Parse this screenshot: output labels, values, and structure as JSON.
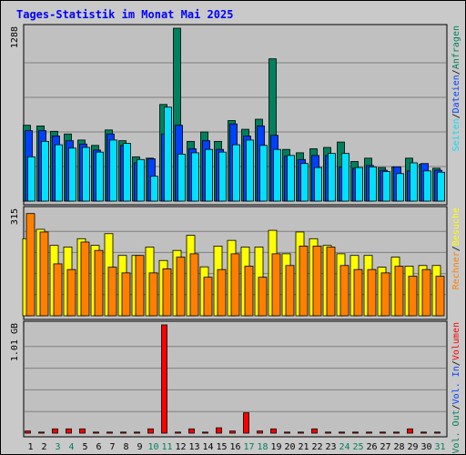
{
  "title": "Tages-Statistik im Monat Mai 2025",
  "colors": {
    "anfragen": "#00805c",
    "dateien": "#0040ff",
    "seiten": "#00e0ff",
    "besuche": "#ffff00",
    "rechner": "#ff8000",
    "volumen": "#ff0000",
    "title": "#0000ff",
    "weekend_day": "#00805c",
    "weekday": "#000000",
    "panel_bg": "#c0c0c0"
  },
  "right_legend": {
    "top": [
      {
        "text": "Anfragen",
        "color": "#00805c"
      },
      {
        "text": "Dateien",
        "color": "#0040ff"
      },
      {
        "text": "Seiten",
        "color": "#00e0ff"
      }
    ],
    "middle": [
      {
        "text": "Besuche",
        "color": "#ffff00"
      },
      {
        "text": "Rechner",
        "color": "#ff8000"
      }
    ],
    "bottom": [
      {
        "text": "Volumen",
        "color": "#ff0000"
      },
      {
        "text": "Vol. In",
        "color": "#0040ff"
      },
      {
        "text": "Vol. Out",
        "color": "#00805c"
      }
    ],
    "separator": "/"
  },
  "chart_data": [
    {
      "type": "bar",
      "panel": "top",
      "ymax_label": "1288",
      "ylim": [
        0,
        1288
      ],
      "categories": [
        "1",
        "2",
        "3",
        "4",
        "5",
        "6",
        "7",
        "8",
        "9",
        "10",
        "11",
        "12",
        "13",
        "14",
        "15",
        "16",
        "17",
        "18",
        "19",
        "20",
        "21",
        "22",
        "23",
        "24",
        "25",
        "26",
        "27",
        "28",
        "29",
        "30",
        "31"
      ],
      "series": [
        {
          "name": "Anfragen",
          "values": [
            565,
            560,
            520,
            500,
            455,
            415,
            530,
            450,
            330,
            320,
            720,
            1288,
            445,
            515,
            445,
            600,
            535,
            610,
            1060,
            385,
            360,
            390,
            400,
            440,
            295,
            320,
            250,
            255,
            320,
            275,
            245
          ]
        },
        {
          "name": "Dateien",
          "values": [
            525,
            525,
            485,
            450,
            425,
            380,
            500,
            415,
            285,
            315,
            500,
            565,
            390,
            450,
            385,
            575,
            485,
            560,
            490,
            335,
            310,
            340,
            340,
            255,
            245,
            265,
            230,
            255,
            225,
            280,
            230
          ]
        },
        {
          "name": "Seiten",
          "values": [
            330,
            445,
            420,
            395,
            400,
            365,
            455,
            430,
            310,
            185,
            700,
            350,
            360,
            385,
            365,
            420,
            455,
            415,
            385,
            340,
            280,
            250,
            355,
            355,
            250,
            255,
            220,
            205,
            285,
            225,
            215
          ]
        }
      ]
    },
    {
      "type": "bar",
      "panel": "middle",
      "ymax_label": "315",
      "ylim": [
        0,
        315
      ],
      "categories": [
        "1",
        "2",
        "3",
        "4",
        "5",
        "6",
        "7",
        "8",
        "9",
        "10",
        "11",
        "12",
        "13",
        "14",
        "15",
        "16",
        "17",
        "18",
        "19",
        "20",
        "21",
        "22",
        "23",
        "24",
        "25",
        "26",
        "27",
        "28",
        "29",
        "30",
        "31"
      ],
      "series": [
        {
          "name": "Besuche",
          "values": [
            230,
            258,
            210,
            205,
            230,
            210,
            245,
            180,
            180,
            205,
            165,
            195,
            240,
            146,
            208,
            225,
            205,
            205,
            255,
            185,
            250,
            230,
            210,
            185,
            180,
            180,
            145,
            175,
            148,
            150,
            150
          ]
        },
        {
          "name": "Rechner",
          "values": [
            305,
            250,
            155,
            138,
            220,
            195,
            145,
            128,
            180,
            128,
            140,
            175,
            185,
            115,
            138,
            185,
            148,
            115,
            185,
            150,
            208,
            208,
            205,
            150,
            138,
            138,
            128,
            148,
            118,
            138,
            118
          ]
        }
      ]
    },
    {
      "type": "bar",
      "panel": "bottom",
      "ymax_label": "1.01 GB",
      "ylim": [
        0,
        1.01
      ],
      "unit": "GB",
      "categories": [
        "1",
        "2",
        "3",
        "4",
        "5",
        "6",
        "7",
        "8",
        "9",
        "10",
        "11",
        "12",
        "13",
        "14",
        "15",
        "16",
        "17",
        "18",
        "19",
        "20",
        "21",
        "22",
        "23",
        "24",
        "25",
        "26",
        "27",
        "28",
        "29",
        "30",
        "31"
      ],
      "series": [
        {
          "name": "Volumen",
          "values": [
            0.02,
            0.01,
            0.04,
            0.04,
            0.04,
            0.01,
            0.01,
            0.01,
            0.01,
            0.04,
            1.01,
            0.01,
            0.04,
            0.01,
            0.05,
            0.02,
            0.19,
            0.02,
            0.04,
            0.01,
            0.01,
            0.04,
            0.01,
            0.01,
            0.01,
            0.01,
            0.01,
            0.01,
            0.04,
            0.01,
            0.01
          ]
        }
      ]
    }
  ],
  "day_labels": {
    "weekend_days": [
      "3",
      "4",
      "10",
      "11",
      "17",
      "18",
      "24",
      "25",
      "31"
    ]
  }
}
